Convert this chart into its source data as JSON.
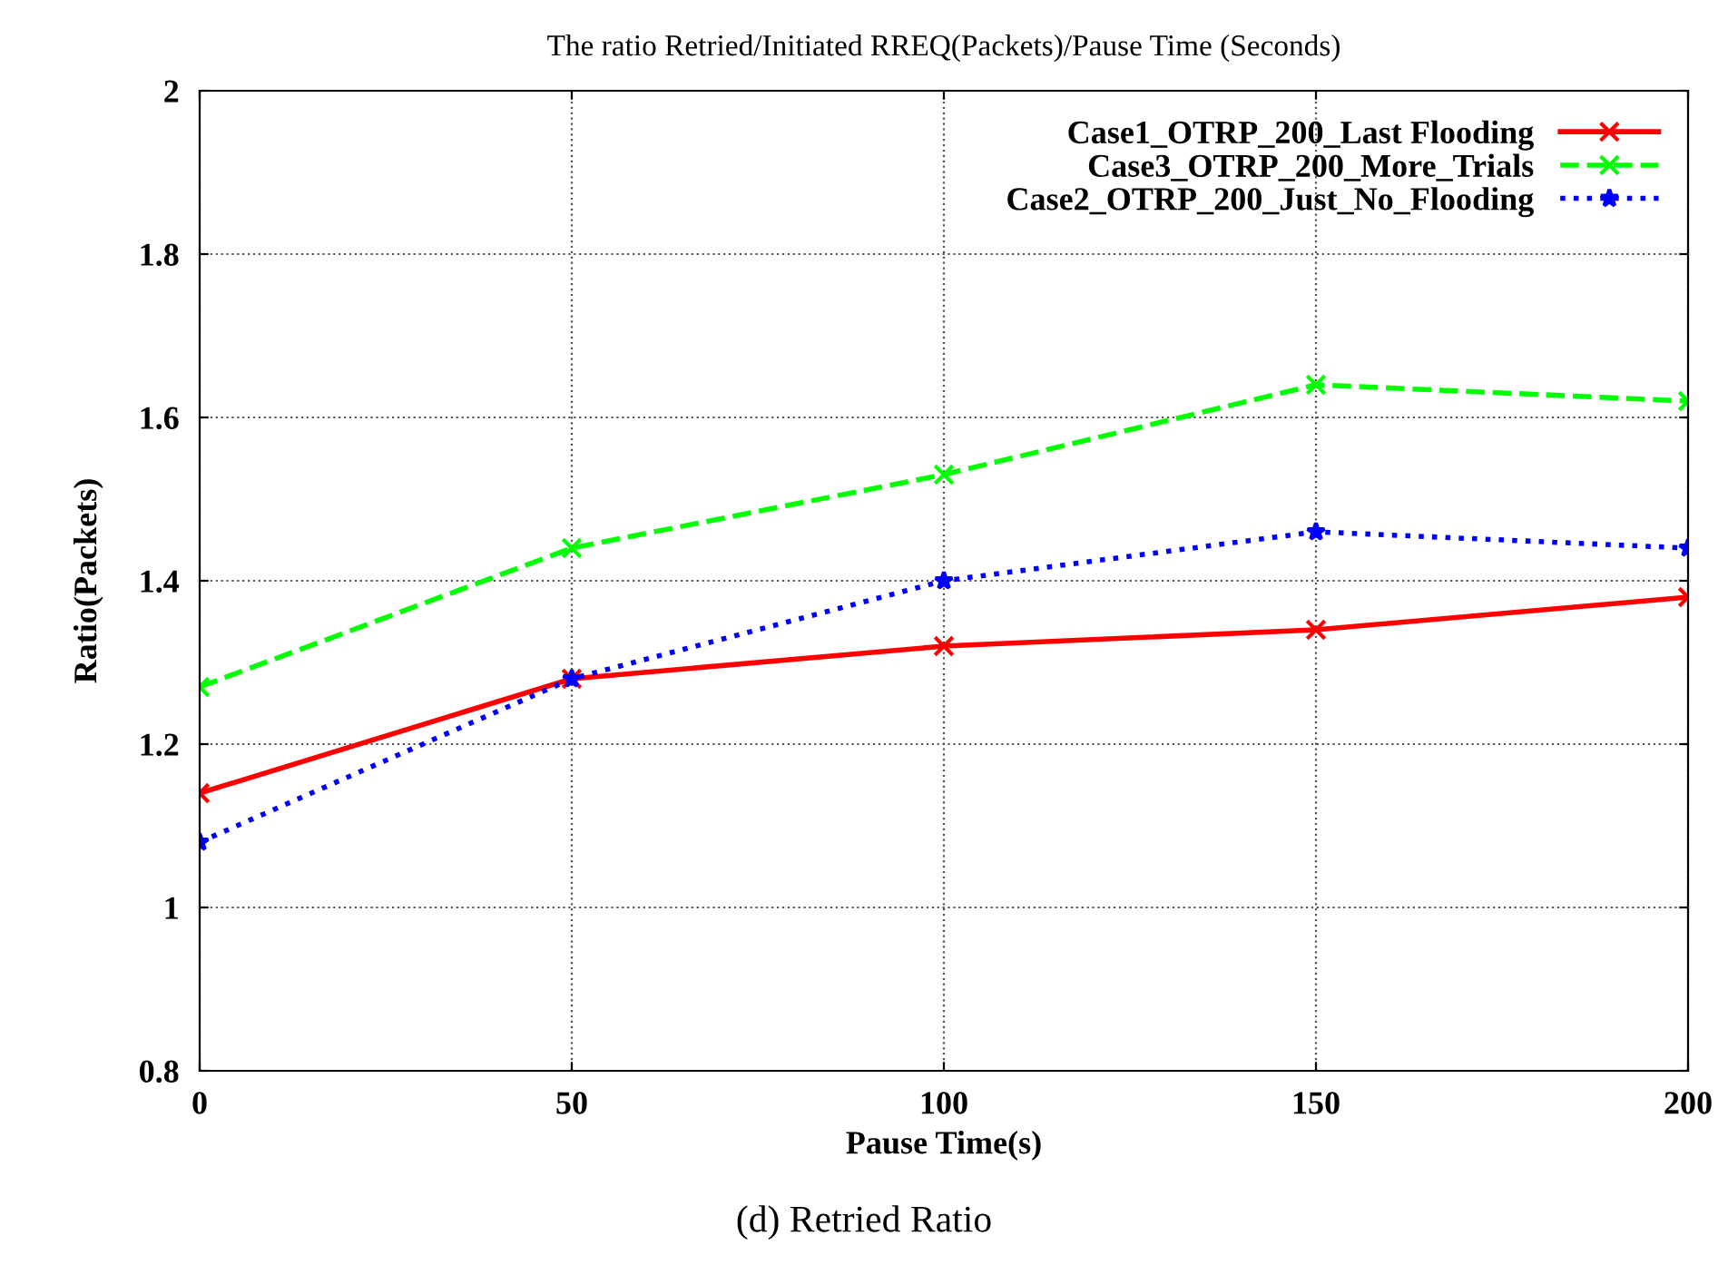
{
  "chart_data": {
    "type": "line",
    "title": "The ratio Retried/Initiated RREQ(Packets)/Pause Time (Seconds)",
    "xlabel": "Pause Time(s)",
    "ylabel": "Ratio(Packets)",
    "x": [
      0,
      50,
      100,
      150,
      200
    ],
    "series": [
      {
        "name": "Case1_OTRP_200_Last Flooding",
        "color": "#ff0000",
        "marker": "cross",
        "line_style": "solid",
        "values": [
          1.14,
          1.28,
          1.32,
          1.34,
          1.38
        ]
      },
      {
        "name": "Case3_OTRP_200_More_Trials",
        "color": "#00ff00",
        "marker": "cross",
        "line_style": "dashed",
        "values": [
          1.27,
          1.44,
          1.53,
          1.64,
          1.62
        ]
      },
      {
        "name": "Case2_OTRP_200_Just_No_Flooding",
        "color": "#0000ff",
        "marker": "star",
        "line_style": "dotted",
        "values": [
          1.08,
          1.28,
          1.4,
          1.46,
          1.44
        ]
      }
    ],
    "xlim": [
      0,
      200
    ],
    "xticks": [
      0,
      50,
      100,
      150,
      200
    ],
    "ylim": [
      0.8,
      2
    ],
    "yticks": [
      0.8,
      1,
      1.2,
      1.4,
      1.6,
      1.8,
      2
    ],
    "grid": true,
    "legend": "top right",
    "annotations": [
      "(d) Retried Ratio"
    ]
  }
}
